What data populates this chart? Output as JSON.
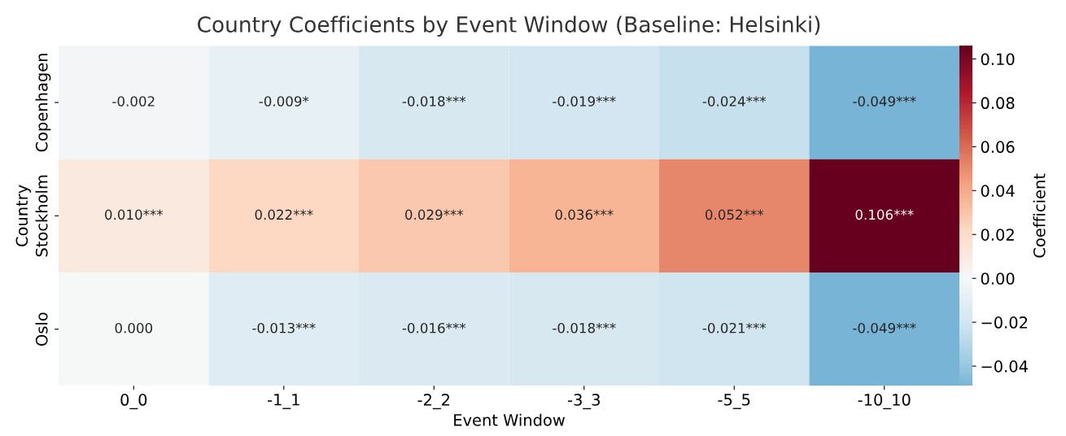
{
  "chart_data": {
    "type": "heatmap",
    "title": "Country Coefficients by Event Window (Baseline: Helsinki)",
    "xlabel": "Event Window",
    "ylabel": "Country",
    "clabel": "Coefficient",
    "categories": [
      "0_0",
      "-1_1",
      "-2_2",
      "-3_3",
      "-5_5",
      "-10_10"
    ],
    "y_categories": [
      "Copenhagen",
      "Stockholm",
      "Oslo"
    ],
    "cells": [
      [
        -0.002,
        -0.009,
        -0.018,
        -0.019,
        -0.024,
        -0.049
      ],
      [
        0.01,
        0.022,
        0.029,
        0.036,
        0.052,
        0.106
      ],
      [
        0.0,
        -0.013,
        -0.016,
        -0.018,
        -0.021,
        -0.049
      ]
    ],
    "cell_labels": [
      [
        "-0.002",
        "-0.009*",
        "-0.018***",
        "-0.019***",
        "-0.024***",
        "-0.049***"
      ],
      [
        "0.010***",
        "0.022***",
        "0.029***",
        "0.036***",
        "0.052***",
        "0.106***"
      ],
      [
        "0.000",
        "-0.013***",
        "-0.016***",
        "-0.018***",
        "-0.021***",
        "-0.049***"
      ]
    ],
    "clim": [
      -0.049,
      0.106
    ],
    "cticks": [
      {
        "value": -0.04,
        "label": "−0.04"
      },
      {
        "value": -0.02,
        "label": "−0.02"
      },
      {
        "value": 0,
        "label": "0.00"
      },
      {
        "value": 0.02,
        "label": "0.02"
      },
      {
        "value": 0.04,
        "label": "0.04"
      },
      {
        "value": 0.06,
        "label": "0.06"
      },
      {
        "value": 0.08,
        "label": "0.08"
      },
      {
        "value": 0.1,
        "label": "0.10"
      }
    ],
    "grid": false
  }
}
